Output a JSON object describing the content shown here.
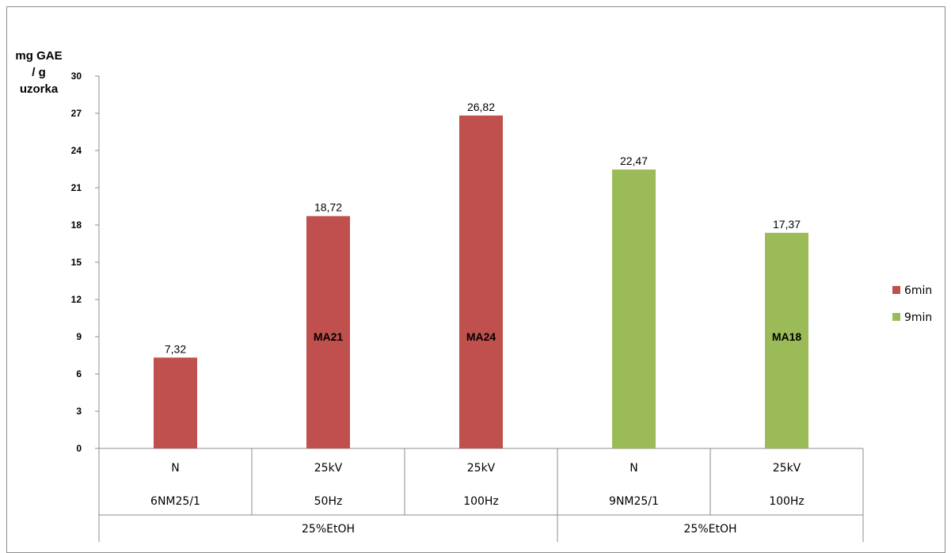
{
  "chart_data": {
    "type": "bar",
    "ylabel": "mg GAE / g uzorka",
    "ylabel_lines": [
      "mg GAE",
      "/ g",
      "uzorka"
    ],
    "ylim": [
      0,
      30
    ],
    "yticks": [
      "0",
      "3",
      "6",
      "9",
      "12",
      "15",
      "18",
      "21",
      "24",
      "27",
      "30"
    ],
    "grid": false,
    "legend_position": "right",
    "categories": [
      {
        "line1": "N",
        "line2": "6NM25/1"
      },
      {
        "line1": "25kV",
        "line2": "50Hz"
      },
      {
        "line1": "25kV",
        "line2": "100Hz"
      },
      {
        "line1": "N",
        "line2": "9NM25/1"
      },
      {
        "line1": "25kV",
        "line2": "100Hz"
      }
    ],
    "groups": [
      {
        "label": "25%EtOH",
        "span": [
          0,
          2
        ]
      },
      {
        "label": "25%EtOH",
        "span": [
          3,
          4
        ]
      }
    ],
    "series": [
      {
        "name": "6min",
        "color": "#c0504d",
        "values": [
          7.32,
          18.72,
          26.82,
          null,
          null
        ],
        "labels": [
          "7,32",
          "18,72",
          "26,82",
          "",
          ""
        ]
      },
      {
        "name": "9min",
        "color": "#9bbb59",
        "values": [
          null,
          null,
          null,
          22.47,
          17.37
        ],
        "labels": [
          "",
          "",
          "",
          "22,47",
          "17,37"
        ]
      }
    ],
    "annotations": [
      {
        "category": 1,
        "text": "MA21"
      },
      {
        "category": 2,
        "text": "MA24"
      },
      {
        "category": 4,
        "text": "MA18"
      }
    ]
  }
}
